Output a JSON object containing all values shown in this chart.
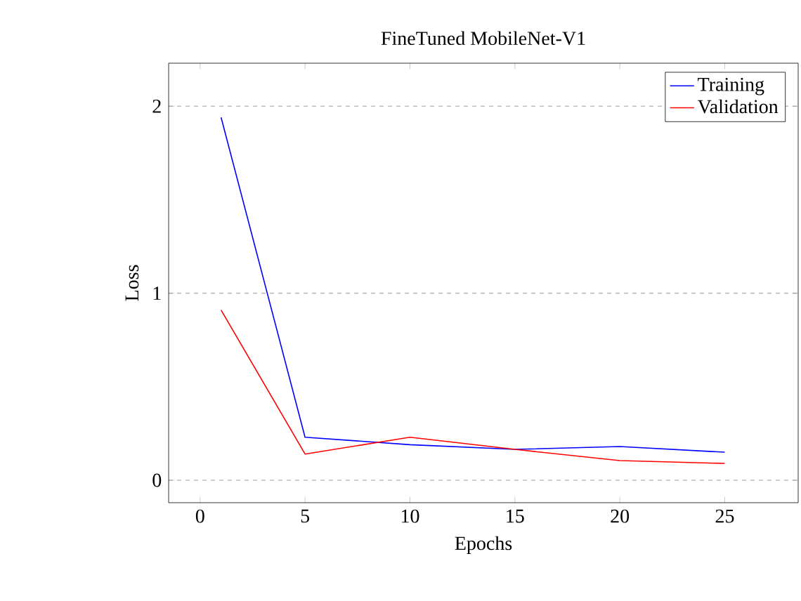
{
  "chart_data": {
    "type": "line",
    "title": "FineTuned MobileNet-V1",
    "xlabel": "Epochs",
    "ylabel": "Loss",
    "x": [
      1,
      5,
      10,
      15,
      20,
      25
    ],
    "series": [
      {
        "name": "Training",
        "color": "#0000ff",
        "values": [
          1.94,
          0.23,
          0.19,
          0.165,
          0.18,
          0.15
        ]
      },
      {
        "name": "Validation",
        "color": "#ff0000",
        "values": [
          0.91,
          0.14,
          0.23,
          0.165,
          0.105,
          0.09
        ]
      }
    ],
    "xlim": [
      -1.5,
      28.5
    ],
    "ylim": [
      -0.12,
      2.23
    ],
    "xticks": [
      0,
      5,
      10,
      15,
      20,
      25
    ],
    "yticks": [
      0,
      1,
      2
    ],
    "grid": "y",
    "legend": "top right",
    "marker": "none",
    "line_style": "solid"
  }
}
